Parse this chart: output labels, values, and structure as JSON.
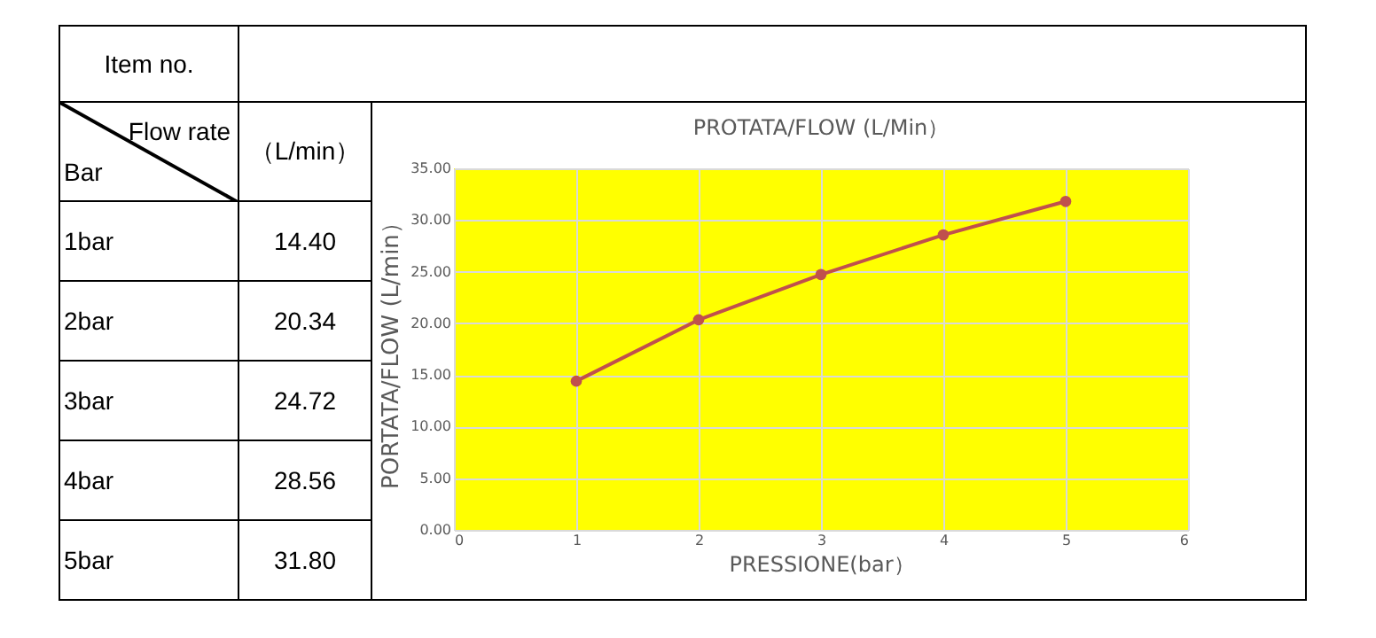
{
  "chart_data": {
    "type": "line",
    "title": "PROTATA/FLOW (L/Min）",
    "xlabel": "PRESSIONE(bar）",
    "ylabel": "PORTATA/FLOW (L/min）",
    "x": [
      1,
      2,
      3,
      4,
      5
    ],
    "series": [
      {
        "color": "#c0504d",
        "values": [
          14.4,
          20.34,
          24.72,
          28.56,
          31.8
        ]
      }
    ],
    "xlim": [
      0,
      6
    ],
    "xticks": [
      0,
      1,
      2,
      3,
      4,
      5,
      6
    ],
    "ylim": [
      0,
      35
    ],
    "yticks": [
      {
        "value": 0,
        "label": "0.00"
      },
      {
        "value": 5,
        "label": "5.00"
      },
      {
        "value": 10,
        "label": "10.00"
      },
      {
        "value": 15,
        "label": "15.00"
      },
      {
        "value": 20,
        "label": "20.00"
      },
      {
        "value": 25,
        "label": "25.00"
      },
      {
        "value": 30,
        "label": "30.00"
      },
      {
        "value": 35,
        "label": "35.00"
      }
    ],
    "grid": true,
    "marker": "circle",
    "line_style": "solid",
    "legend": false,
    "annotations": [
      "Item no.",
      "Flow rate",
      "Bar",
      "（L/min）",
      "1bar",
      "2bar",
      "3bar",
      "4bar",
      "5bar",
      "14.40",
      "20.34",
      "24.72",
      "28.56",
      "31.80"
    ]
  }
}
